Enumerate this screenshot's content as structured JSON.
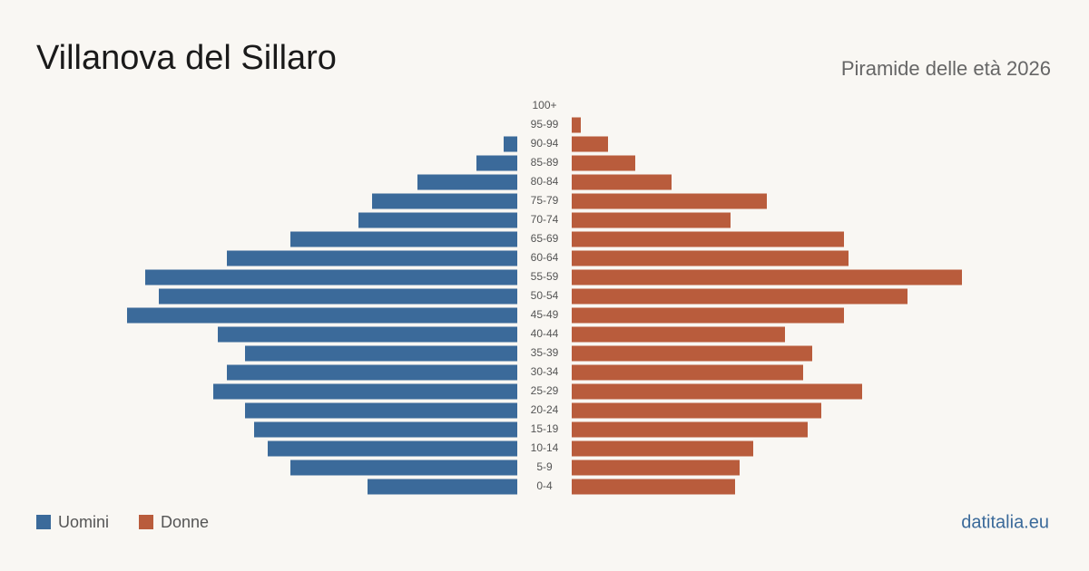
{
  "chart_data": {
    "type": "pyramid",
    "title": "Villanova del Sillaro",
    "subtitle": "Piramide delle età 2026",
    "source": "datitalia.eu",
    "categories": [
      "100+",
      "95-99",
      "90-94",
      "85-89",
      "80-84",
      "75-79",
      "70-74",
      "65-69",
      "60-64",
      "55-59",
      "50-54",
      "45-49",
      "40-44",
      "35-39",
      "30-34",
      "25-29",
      "20-24",
      "15-19",
      "10-14",
      "5-9",
      "0-4"
    ],
    "series": [
      {
        "name": "Uomini",
        "color": "#3b6a9a",
        "side": "left",
        "values": [
          0,
          0,
          3,
          9,
          22,
          32,
          35,
          50,
          64,
          82,
          79,
          86,
          66,
          60,
          64,
          67,
          60,
          58,
          55,
          50,
          33
        ]
      },
      {
        "name": "Donne",
        "color": "#b95c3c",
        "side": "right",
        "values": [
          0,
          2,
          8,
          14,
          22,
          43,
          35,
          60,
          61,
          86,
          74,
          60,
          47,
          53,
          51,
          64,
          55,
          52,
          40,
          37,
          36
        ]
      }
    ]
  }
}
